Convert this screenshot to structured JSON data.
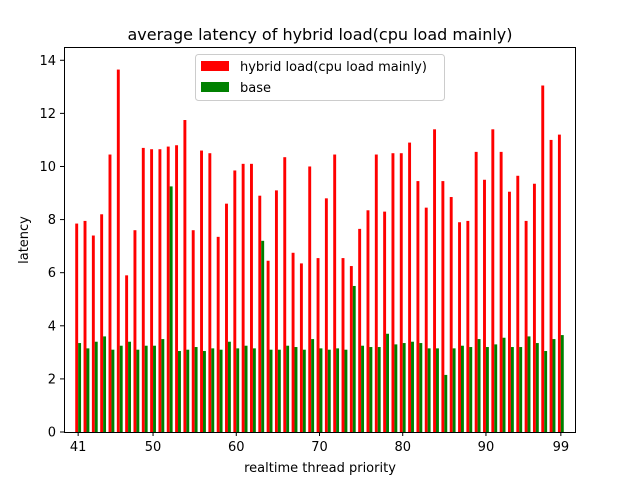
{
  "chart_data": {
    "type": "bar",
    "title": "average latency of hybrid load(cpu load mainly)",
    "xlabel": "realtime thread priority",
    "ylabel": "latency",
    "xlim": [
      39.3,
      100.7
    ],
    "ylim": [
      0,
      14.5
    ],
    "x_ticks": [
      41,
      50,
      60,
      70,
      80,
      90,
      99
    ],
    "y_ticks": [
      0,
      2,
      4,
      6,
      8,
      10,
      12,
      14
    ],
    "grid": false,
    "legend_position": "top-center",
    "x": [
      41,
      42,
      43,
      44,
      45,
      46,
      47,
      48,
      49,
      50,
      51,
      52,
      53,
      54,
      55,
      56,
      57,
      58,
      59,
      60,
      61,
      62,
      63,
      64,
      65,
      66,
      67,
      68,
      69,
      70,
      71,
      72,
      73,
      74,
      75,
      76,
      77,
      78,
      79,
      80,
      81,
      82,
      83,
      84,
      85,
      86,
      87,
      88,
      89,
      90,
      91,
      92,
      93,
      94,
      95,
      96,
      97,
      98,
      99
    ],
    "series": [
      {
        "name": "hybrid load(cpu load mainly)",
        "color": "#ff0000",
        "values": [
          7.85,
          7.95,
          7.4,
          8.2,
          10.45,
          13.65,
          5.9,
          7.6,
          10.7,
          10.65,
          10.65,
          10.75,
          10.8,
          11.75,
          7.6,
          10.6,
          10.5,
          7.35,
          8.6,
          9.85,
          10.1,
          10.1,
          8.9,
          6.45,
          9.1,
          10.35,
          6.75,
          6.35,
          10.0,
          6.55,
          8.8,
          10.45,
          6.55,
          6.25,
          7.65,
          8.35,
          10.45,
          8.3,
          10.5,
          10.5,
          10.9,
          9.45,
          8.45,
          11.4,
          9.45,
          8.85,
          7.9,
          7.95,
          10.55,
          9.5,
          11.4,
          10.55,
          9.05,
          9.65,
          7.95,
          9.35,
          13.05,
          11.0,
          11.2
        ]
      },
      {
        "name": "base",
        "color": "#008000",
        "values": [
          3.35,
          3.15,
          3.4,
          3.6,
          3.1,
          3.25,
          3.4,
          3.1,
          3.25,
          3.25,
          3.5,
          9.25,
          3.05,
          3.1,
          3.2,
          3.05,
          3.15,
          3.1,
          3.4,
          3.15,
          3.25,
          3.15,
          7.2,
          3.1,
          3.1,
          3.25,
          3.2,
          3.1,
          3.5,
          3.15,
          3.1,
          3.15,
          3.1,
          5.5,
          3.25,
          3.2,
          3.2,
          3.7,
          3.3,
          3.35,
          3.4,
          3.35,
          3.15,
          3.15,
          2.15,
          3.15,
          3.25,
          3.2,
          3.5,
          3.2,
          3.3,
          3.55,
          3.2,
          3.2,
          3.6,
          3.35,
          3.05,
          3.5,
          3.65
        ]
      }
    ]
  }
}
